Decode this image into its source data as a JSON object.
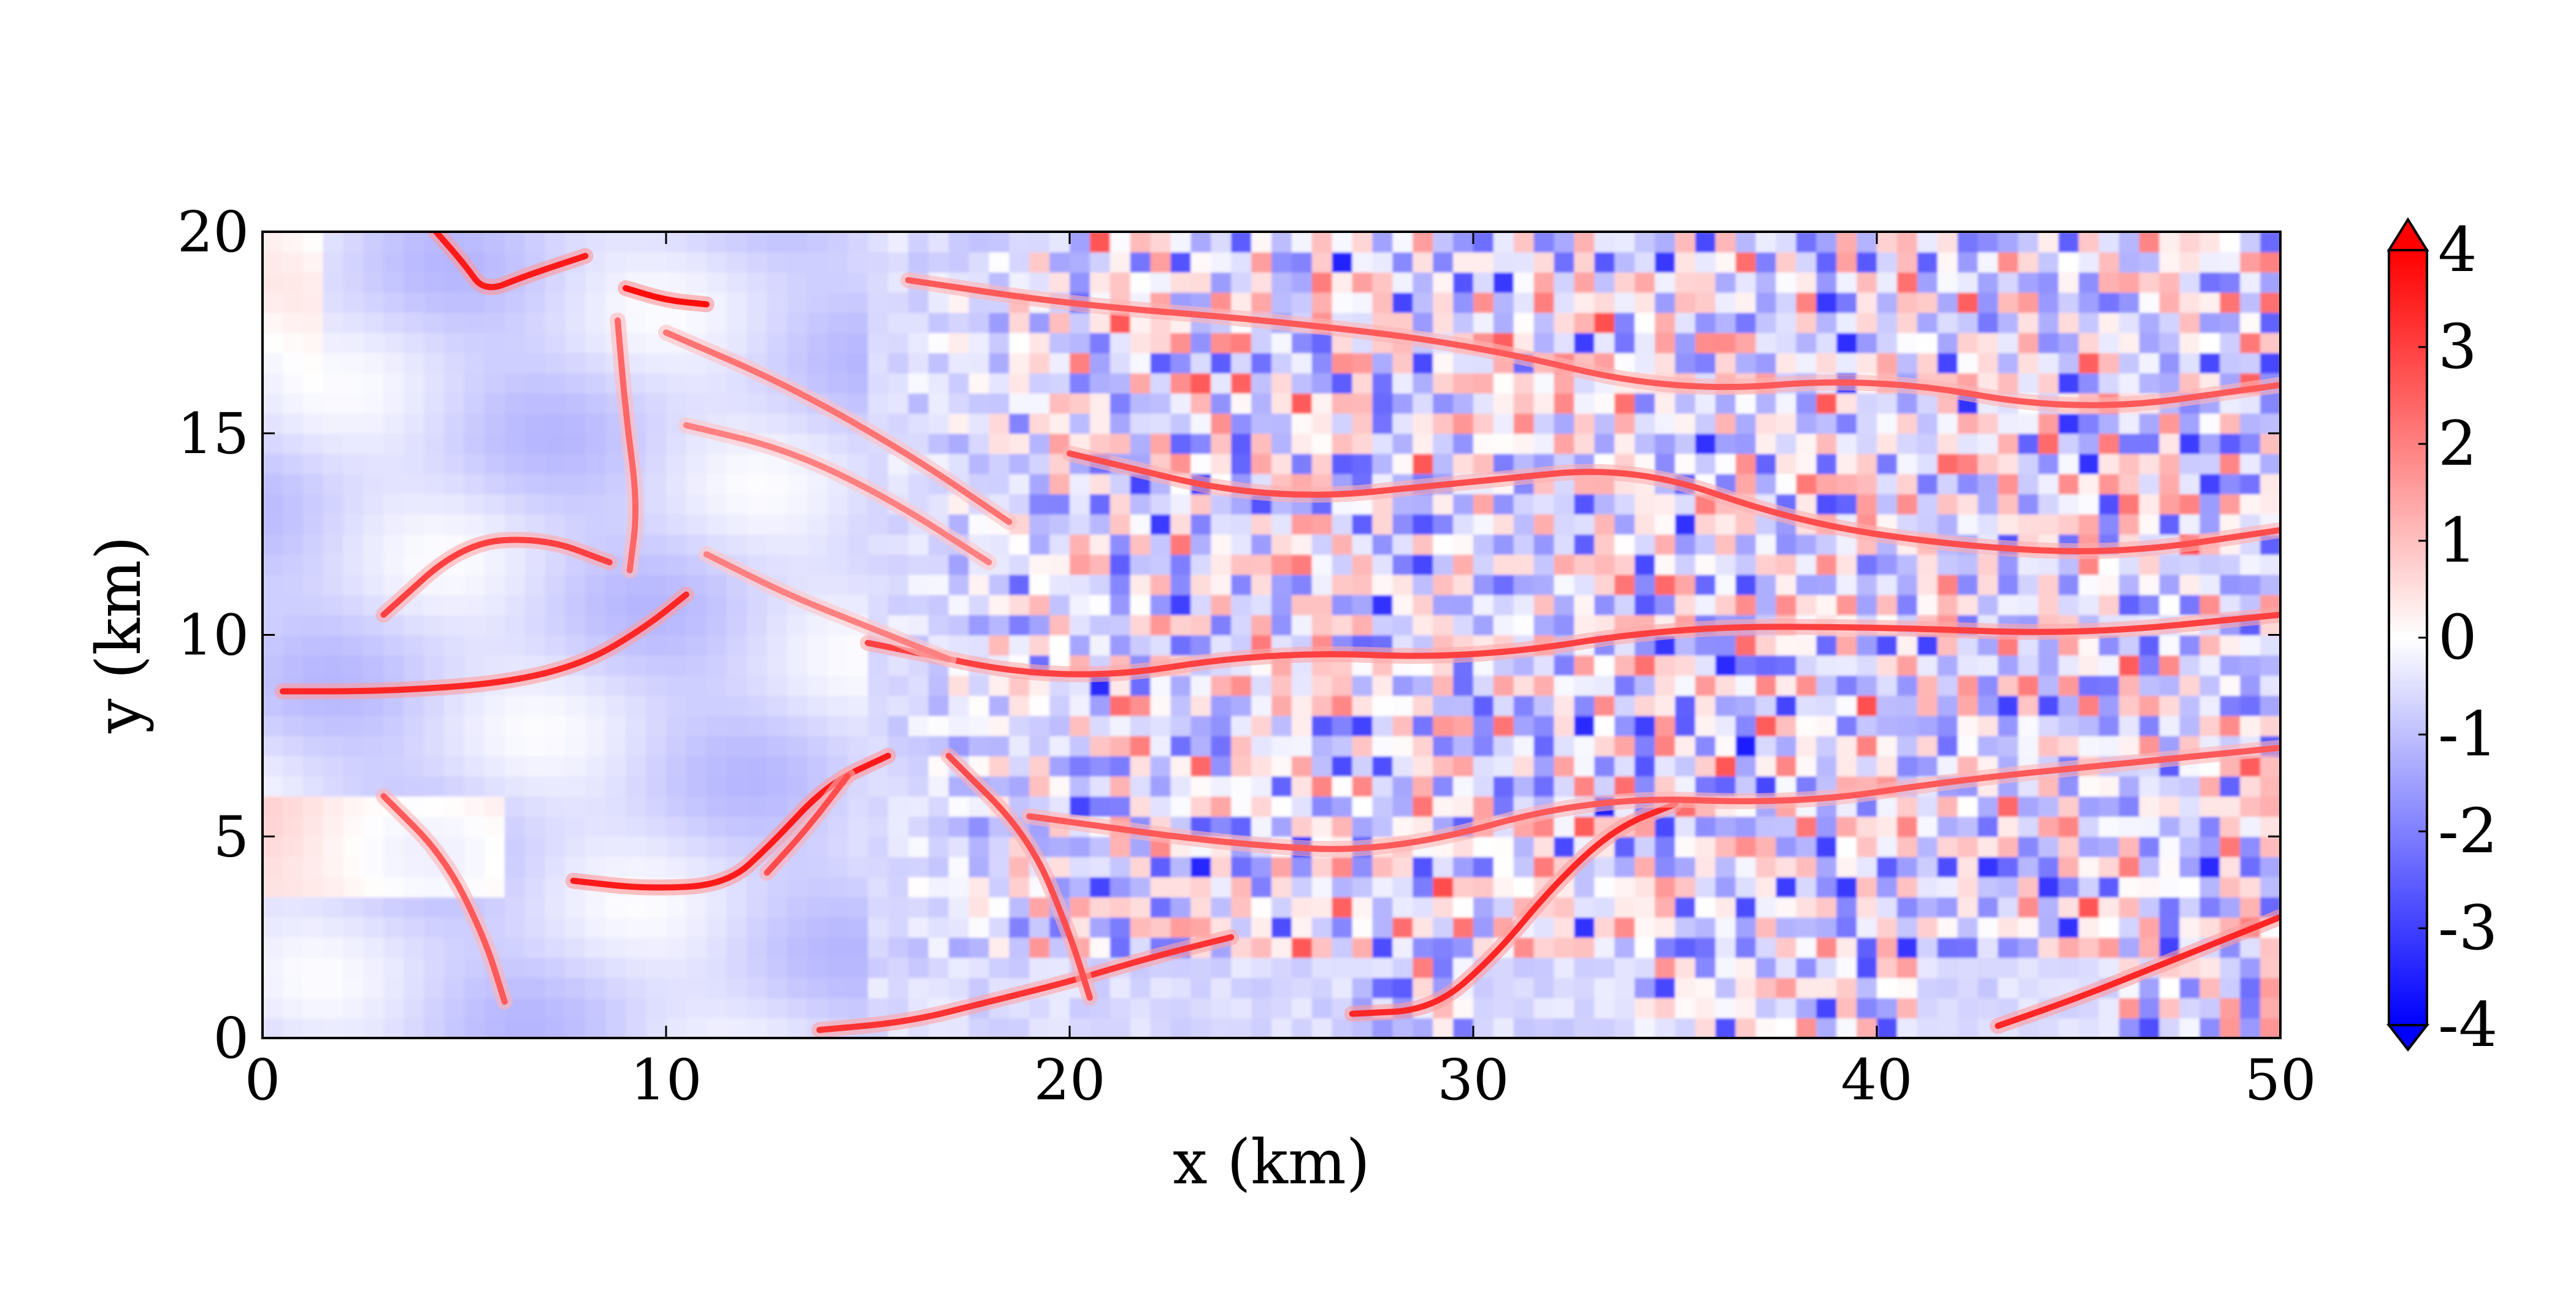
{
  "chart_data": {
    "type": "heatmap",
    "title": "",
    "xlabel": "x (km)",
    "ylabel": "y (km)",
    "xlim": [
      0,
      50
    ],
    "ylim": [
      0,
      20
    ],
    "x_ticks": [
      "0",
      "10",
      "20",
      "30",
      "40",
      "50"
    ],
    "y_ticks": [
      "0",
      "5",
      "10",
      "15",
      "20"
    ],
    "colorbar": {
      "range": [
        -4,
        4
      ],
      "extend": "both",
      "ticks": [
        "4",
        "3",
        "2",
        "1",
        "0",
        "-1",
        "-2",
        "-3",
        "-4"
      ],
      "colormap": "bwr",
      "colors": {
        "low": "#0000ff",
        "mid": "#ffffff",
        "high": "#ff0000"
      }
    },
    "description_regions": [
      {
        "x_range": [
          0,
          15
        ],
        "pattern": "smooth, mostly weak negative with thin positive filaments"
      },
      {
        "x_range": [
          15,
          50
        ],
        "pattern": "fine-scale turbulent field with values roughly between -4 and 4"
      }
    ],
    "filaments": [
      {
        "points": [
          [
            0.5,
            8.6
          ],
          [
            3,
            8.6
          ],
          [
            6,
            8.8
          ],
          [
            8,
            9.3
          ],
          [
            9.5,
            10.2
          ],
          [
            10.5,
            11
          ]
        ],
        "value": 3.4
      },
      {
        "points": [
          [
            3,
            10.5
          ],
          [
            5,
            12.3
          ],
          [
            7,
            12.4
          ],
          [
            8.6,
            11.8
          ]
        ],
        "value": 3.0
      },
      {
        "points": [
          [
            4.3,
            20
          ],
          [
            5,
            19.2
          ],
          [
            5.5,
            18.5
          ],
          [
            6.5,
            18.9
          ],
          [
            8,
            19.4
          ]
        ],
        "value": 3.6
      },
      {
        "points": [
          [
            9,
            18.6
          ],
          [
            10,
            18.3
          ],
          [
            11,
            18.2
          ]
        ],
        "value": 3.8
      },
      {
        "points": [
          [
            8.8,
            17.8
          ],
          [
            9,
            15.5
          ],
          [
            9.3,
            13.2
          ],
          [
            9.1,
            11.6
          ]
        ],
        "value": 2.4
      },
      {
        "points": [
          [
            7.7,
            3.9
          ],
          [
            9.5,
            3.7
          ],
          [
            11.5,
            3.8
          ],
          [
            12.6,
            4.8
          ],
          [
            14,
            6.3
          ],
          [
            15.5,
            7
          ]
        ],
        "value": 3.6
      },
      {
        "points": [
          [
            12.5,
            4.1
          ],
          [
            13.5,
            5.2
          ],
          [
            14.5,
            6.5
          ]
        ],
        "value": 2.8
      },
      {
        "points": [
          [
            3,
            6
          ],
          [
            4.5,
            4.5
          ],
          [
            5.5,
            2.5
          ],
          [
            6,
            0.9
          ]
        ],
        "value": 2.6
      },
      {
        "points": [
          [
            13.8,
            0.2
          ],
          [
            16,
            0.4
          ],
          [
            18,
            0.9
          ],
          [
            20,
            1.4
          ],
          [
            22,
            2.0
          ],
          [
            24,
            2.5
          ]
        ],
        "value": 3.2
      },
      {
        "points": [
          [
            17,
            7.0
          ],
          [
            19,
            5.0
          ],
          [
            20,
            2.6
          ],
          [
            20.5,
            1.0
          ]
        ],
        "value": 2.8
      },
      {
        "points": [
          [
            27,
            0.6
          ],
          [
            29,
            0.7
          ],
          [
            30.5,
            2.0
          ],
          [
            32,
            3.8
          ],
          [
            33.5,
            5.2
          ],
          [
            35,
            5.8
          ]
        ],
        "value": 3.4
      },
      {
        "points": [
          [
            43,
            0.3
          ],
          [
            45,
            1.0
          ],
          [
            47,
            1.8
          ],
          [
            49,
            2.6
          ],
          [
            50,
            3.0
          ]
        ],
        "value": 3.4
      },
      {
        "points": [
          [
            15,
            9.8
          ],
          [
            20,
            8.8
          ],
          [
            25,
            9.6
          ],
          [
            30,
            9.4
          ],
          [
            35,
            10.2
          ],
          [
            40,
            10.2
          ],
          [
            45,
            10.0
          ],
          [
            50,
            10.5
          ]
        ],
        "value": 3.0
      },
      {
        "points": [
          [
            20,
            14.5
          ],
          [
            25,
            13.3
          ],
          [
            30,
            13.8
          ],
          [
            34,
            14.2
          ],
          [
            38,
            12.8
          ],
          [
            42,
            12.2
          ],
          [
            46,
            12.0
          ],
          [
            50,
            12.6
          ]
        ],
        "value": 2.8
      },
      {
        "points": [
          [
            16,
            18.8
          ],
          [
            20,
            18.2
          ],
          [
            25,
            17.8
          ],
          [
            30,
            17.2
          ],
          [
            35,
            16.0
          ],
          [
            40,
            16.4
          ],
          [
            45,
            15.5
          ],
          [
            50,
            16.2
          ]
        ],
        "value": 2.6
      },
      {
        "points": [
          [
            19,
            5.5
          ],
          [
            24,
            4.8
          ],
          [
            28,
            4.6
          ],
          [
            33,
            6.0
          ],
          [
            38,
            5.8
          ],
          [
            42,
            6.4
          ],
          [
            46,
            6.8
          ],
          [
            50,
            7.2
          ]
        ],
        "value": 2.6
      },
      {
        "points": [
          [
            10,
            17.5
          ],
          [
            13,
            16.2
          ],
          [
            16,
            14.5
          ],
          [
            18.5,
            12.8
          ]
        ],
        "value": 2.2
      },
      {
        "points": [
          [
            10.5,
            15.2
          ],
          [
            13,
            14.6
          ],
          [
            15.5,
            13.4
          ],
          [
            18,
            11.8
          ]
        ],
        "value": 2.0
      },
      {
        "points": [
          [
            11,
            12.0
          ],
          [
            13,
            11.0
          ],
          [
            15,
            10.2
          ],
          [
            17,
            9.4
          ]
        ],
        "value": 2.0
      }
    ]
  }
}
